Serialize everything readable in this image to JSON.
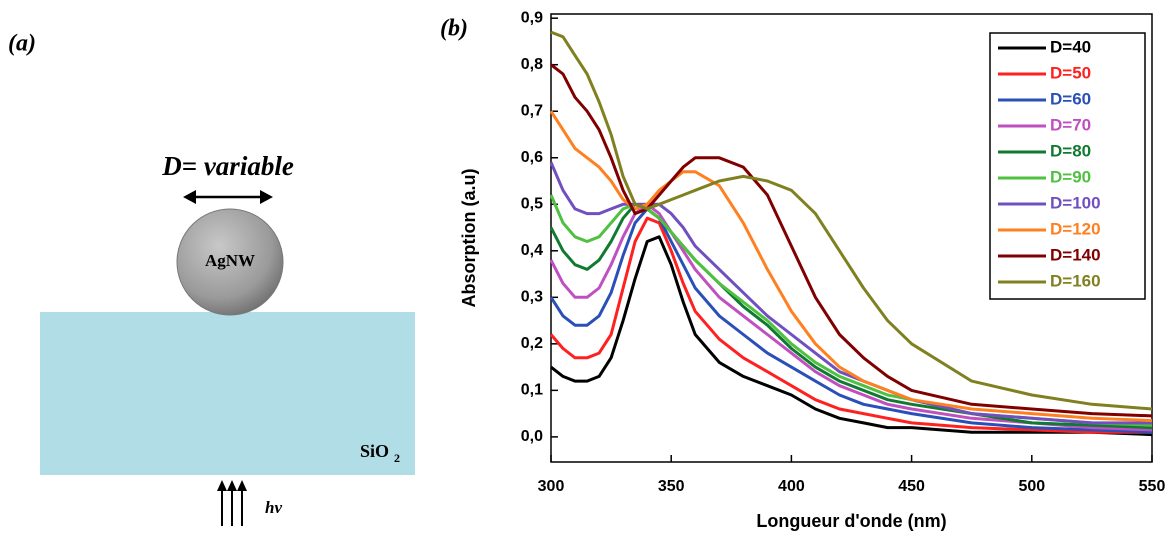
{
  "panel_labels": [
    "(a)",
    "(b)"
  ],
  "diagram": {
    "dimension_label": "D= variable",
    "particle_label": "AgNW",
    "substrate_label": "SiO",
    "substrate_subscript": "2",
    "light_label": "hv"
  },
  "chart_data": {
    "type": "line",
    "x_label": "Longueur d'onde (nm)",
    "y_label": "Absorption (a.u)",
    "x": [
      300,
      305,
      310,
      315,
      320,
      325,
      330,
      335,
      340,
      345,
      350,
      355,
      360,
      370,
      380,
      390,
      400,
      410,
      420,
      430,
      440,
      450,
      475,
      500,
      525,
      550
    ],
    "series": [
      {
        "name": "D=40",
        "color": "#000000",
        "values": [
          0.15,
          0.13,
          0.12,
          0.12,
          0.13,
          0.17,
          0.25,
          0.34,
          0.42,
          0.43,
          0.37,
          0.29,
          0.22,
          0.16,
          0.13,
          0.11,
          0.09,
          0.06,
          0.04,
          0.03,
          0.02,
          0.02,
          0.01,
          0.01,
          0.01,
          0.005
        ]
      },
      {
        "name": "D=50",
        "color": "#ff2020",
        "values": [
          0.22,
          0.19,
          0.17,
          0.17,
          0.18,
          0.22,
          0.32,
          0.42,
          0.47,
          0.46,
          0.4,
          0.33,
          0.27,
          0.21,
          0.17,
          0.14,
          0.11,
          0.08,
          0.06,
          0.05,
          0.04,
          0.03,
          0.02,
          0.015,
          0.01,
          0.01
        ]
      },
      {
        "name": "D=60",
        "color": "#2a50b8",
        "values": [
          0.3,
          0.26,
          0.24,
          0.24,
          0.26,
          0.31,
          0.39,
          0.46,
          0.49,
          0.47,
          0.42,
          0.37,
          0.32,
          0.26,
          0.22,
          0.18,
          0.15,
          0.12,
          0.09,
          0.07,
          0.06,
          0.05,
          0.03,
          0.02,
          0.015,
          0.01
        ]
      },
      {
        "name": "D=70",
        "color": "#c050c0",
        "values": [
          0.38,
          0.33,
          0.3,
          0.3,
          0.32,
          0.37,
          0.43,
          0.48,
          0.5,
          0.48,
          0.44,
          0.4,
          0.36,
          0.3,
          0.26,
          0.22,
          0.18,
          0.14,
          0.11,
          0.09,
          0.07,
          0.06,
          0.04,
          0.03,
          0.02,
          0.015
        ]
      },
      {
        "name": "D=80",
        "color": "#107a30",
        "values": [
          0.45,
          0.4,
          0.37,
          0.36,
          0.38,
          0.42,
          0.47,
          0.5,
          0.49,
          0.47,
          0.44,
          0.41,
          0.38,
          0.33,
          0.28,
          0.24,
          0.19,
          0.15,
          0.12,
          0.1,
          0.08,
          0.07,
          0.05,
          0.03,
          0.025,
          0.02
        ]
      },
      {
        "name": "D=90",
        "color": "#50c040",
        "values": [
          0.52,
          0.46,
          0.43,
          0.42,
          0.43,
          0.46,
          0.49,
          0.5,
          0.49,
          0.47,
          0.44,
          0.41,
          0.38,
          0.33,
          0.29,
          0.25,
          0.2,
          0.16,
          0.13,
          0.11,
          0.09,
          0.08,
          0.05,
          0.04,
          0.03,
          0.025
        ]
      },
      {
        "name": "D=100",
        "color": "#7050c0",
        "values": [
          0.59,
          0.53,
          0.49,
          0.48,
          0.48,
          0.49,
          0.5,
          0.5,
          0.5,
          0.5,
          0.48,
          0.45,
          0.41,
          0.36,
          0.31,
          0.26,
          0.22,
          0.18,
          0.14,
          0.12,
          0.1,
          0.08,
          0.05,
          0.04,
          0.03,
          0.03
        ]
      },
      {
        "name": "D=120",
        "color": "#ff8020",
        "values": [
          0.7,
          0.66,
          0.62,
          0.6,
          0.58,
          0.55,
          0.51,
          0.49,
          0.5,
          0.53,
          0.55,
          0.57,
          0.57,
          0.54,
          0.46,
          0.36,
          0.27,
          0.2,
          0.15,
          0.12,
          0.1,
          0.08,
          0.06,
          0.05,
          0.04,
          0.035
        ]
      },
      {
        "name": "D=140",
        "color": "#800000",
        "values": [
          0.8,
          0.78,
          0.73,
          0.7,
          0.66,
          0.6,
          0.53,
          0.48,
          0.49,
          0.52,
          0.55,
          0.58,
          0.6,
          0.6,
          0.58,
          0.52,
          0.41,
          0.3,
          0.22,
          0.17,
          0.13,
          0.1,
          0.07,
          0.06,
          0.05,
          0.045
        ]
      },
      {
        "name": "D=160",
        "color": "#808020",
        "values": [
          0.87,
          0.86,
          0.82,
          0.78,
          0.72,
          0.65,
          0.56,
          0.5,
          0.49,
          0.5,
          0.51,
          0.52,
          0.53,
          0.55,
          0.56,
          0.55,
          0.53,
          0.48,
          0.4,
          0.32,
          0.25,
          0.2,
          0.12,
          0.09,
          0.07,
          0.06
        ]
      }
    ],
    "xlim": [
      300,
      550
    ],
    "xticks": [
      300,
      350,
      400,
      450,
      500,
      550
    ],
    "ylim": [
      -0.054,
      0.909
    ],
    "yticks": [
      {
        "value": 0,
        "label": "0,0"
      },
      {
        "value": 0.1,
        "label": "0,1"
      },
      {
        "value": 0.2,
        "label": "0,2"
      },
      {
        "value": 0.3,
        "label": "0,3"
      },
      {
        "value": 0.4,
        "label": "0,4"
      },
      {
        "value": 0.5,
        "label": "0,5"
      },
      {
        "value": 0.6,
        "label": "0,6"
      },
      {
        "value": 0.7,
        "label": "0,7"
      },
      {
        "value": 0.8,
        "label": "0,8"
      },
      {
        "value": 0.9,
        "label": "0,9"
      }
    ],
    "legend": "upper right"
  }
}
